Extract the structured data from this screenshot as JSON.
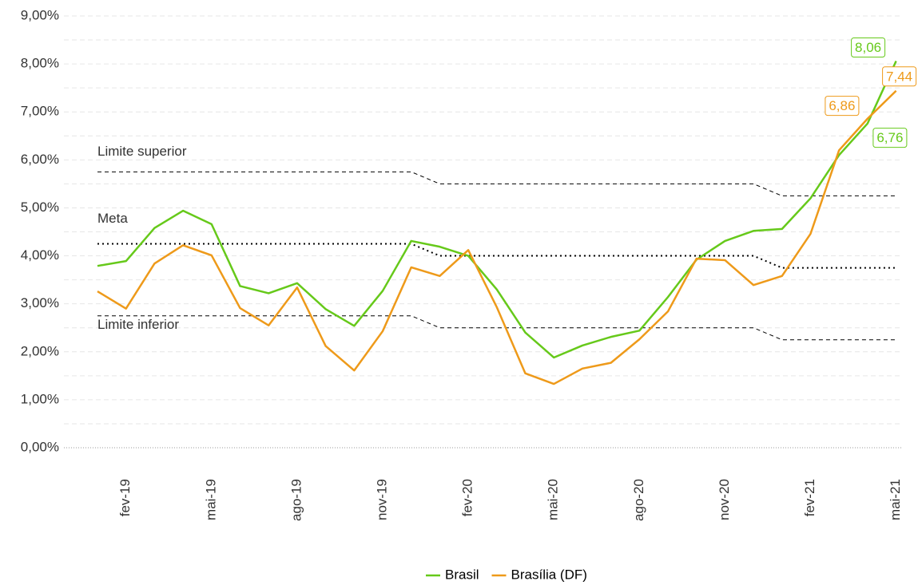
{
  "chart_data": {
    "type": "line",
    "categories": [
      null,
      "fev-19",
      null,
      null,
      "mai-19",
      null,
      null,
      "ago-19",
      null,
      null,
      "nov-19",
      null,
      null,
      "fev-20",
      null,
      null,
      "mai-20",
      null,
      null,
      "ago-20",
      null,
      null,
      "nov-20",
      null,
      null,
      "fev-21",
      null,
      null,
      "mai-21"
    ],
    "series": [
      {
        "name": "Brasil",
        "color": "#66c91a",
        "values": [
          3.79,
          3.89,
          4.58,
          4.94,
          4.66,
          3.37,
          3.22,
          3.43,
          2.89,
          2.54,
          3.27,
          4.31,
          4.19,
          4.0,
          3.3,
          2.4,
          1.88,
          2.13,
          2.31,
          2.44,
          3.14,
          3.92,
          4.31,
          4.52,
          4.56,
          5.2,
          6.1,
          6.76,
          8.06
        ],
        "value_labels": [
          null,
          null,
          null,
          null,
          null,
          null,
          null,
          null,
          null,
          null,
          null,
          null,
          null,
          null,
          null,
          null,
          null,
          null,
          null,
          null,
          null,
          null,
          null,
          null,
          null,
          null,
          null,
          "6,76",
          "8,06"
        ]
      },
      {
        "name": "Brasília (DF)",
        "color": "#ee9a1a",
        "values": [
          3.26,
          2.9,
          3.84,
          4.22,
          4.01,
          2.91,
          2.55,
          3.34,
          2.12,
          1.61,
          2.43,
          3.76,
          3.58,
          4.12,
          2.93,
          1.55,
          1.33,
          1.65,
          1.77,
          2.26,
          2.84,
          3.94,
          3.91,
          3.39,
          3.58,
          4.46,
          6.2,
          6.86,
          7.44
        ],
        "value_labels": [
          null,
          null,
          null,
          null,
          null,
          null,
          null,
          null,
          null,
          null,
          null,
          null,
          null,
          null,
          null,
          null,
          null,
          null,
          null,
          null,
          null,
          null,
          null,
          null,
          null,
          null,
          null,
          "6,86",
          "7,44"
        ]
      }
    ],
    "reference_lines": [
      {
        "name": "Limite superior",
        "style": "dashed",
        "color": "#000000",
        "values": [
          5.75,
          5.75,
          5.75,
          5.75,
          5.75,
          5.75,
          5.75,
          5.75,
          5.75,
          5.75,
          5.75,
          5.75,
          5.5,
          5.5,
          5.5,
          5.5,
          5.5,
          5.5,
          5.5,
          5.5,
          5.5,
          5.5,
          5.5,
          5.5,
          5.25,
          5.25,
          5.25,
          5.25,
          5.25
        ]
      },
      {
        "name": "Meta",
        "style": "dotted",
        "color": "#000000",
        "values": [
          4.25,
          4.25,
          4.25,
          4.25,
          4.25,
          4.25,
          4.25,
          4.25,
          4.25,
          4.25,
          4.25,
          4.25,
          4.0,
          4.0,
          4.0,
          4.0,
          4.0,
          4.0,
          4.0,
          4.0,
          4.0,
          4.0,
          4.0,
          4.0,
          3.75,
          3.75,
          3.75,
          3.75,
          3.75
        ]
      },
      {
        "name": "Limite inferior",
        "style": "dashed",
        "color": "#000000",
        "values": [
          2.75,
          2.75,
          2.75,
          2.75,
          2.75,
          2.75,
          2.75,
          2.75,
          2.75,
          2.75,
          2.75,
          2.75,
          2.5,
          2.5,
          2.5,
          2.5,
          2.5,
          2.5,
          2.5,
          2.5,
          2.5,
          2.5,
          2.5,
          2.5,
          2.25,
          2.25,
          2.25,
          2.25,
          2.25
        ]
      }
    ],
    "ylim": [
      0,
      9
    ],
    "yticks": [
      {
        "value": 0,
        "label": "0,00%"
      },
      {
        "value": 1,
        "label": "1,00%"
      },
      {
        "value": 2,
        "label": "2,00%"
      },
      {
        "value": 3,
        "label": "3,00%"
      },
      {
        "value": 4,
        "label": "4,00%"
      },
      {
        "value": 5,
        "label": "5,00%"
      },
      {
        "value": 6,
        "label": "6,00%"
      },
      {
        "value": 7,
        "label": "7,00%"
      },
      {
        "value": 8,
        "label": "8,00%"
      },
      {
        "value": 9,
        "label": "9,00%"
      }
    ],
    "minor_yticks": [
      0.5,
      1.5,
      2.5,
      3.5,
      4.5,
      5.5,
      6.5,
      7.5,
      8.5
    ],
    "grid": true,
    "legend": "bottom"
  }
}
